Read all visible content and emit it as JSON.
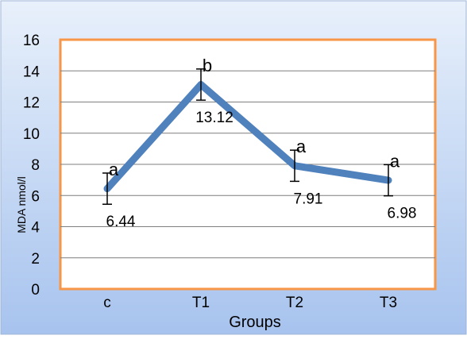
{
  "chart_data": {
    "type": "line",
    "title": "",
    "xlabel": "Groups",
    "ylabel": "MDA nmol/l",
    "categories": [
      "c",
      "T1",
      "T2",
      "T3"
    ],
    "series": [
      {
        "values": [
          6.44,
          13.12,
          7.91,
          6.98
        ],
        "error": [
          1.0,
          1.0,
          1.0,
          1.0
        ],
        "data_labels": [
          "6.44",
          "13.12",
          "7.91",
          "6.98"
        ],
        "significance_letters": [
          "a",
          "b",
          "a",
          "a"
        ]
      }
    ],
    "ylim": [
      0,
      16
    ],
    "yticks": [
      0,
      2,
      4,
      6,
      8,
      10,
      12,
      14,
      16
    ],
    "grid": true,
    "legend": "none",
    "colors": {
      "line": "#4f81bd",
      "plot_border": "#f79646",
      "background_top": "#e8f0fb",
      "background_bottom": "#a7c3ee",
      "grid": "#7f7f7f"
    }
  }
}
